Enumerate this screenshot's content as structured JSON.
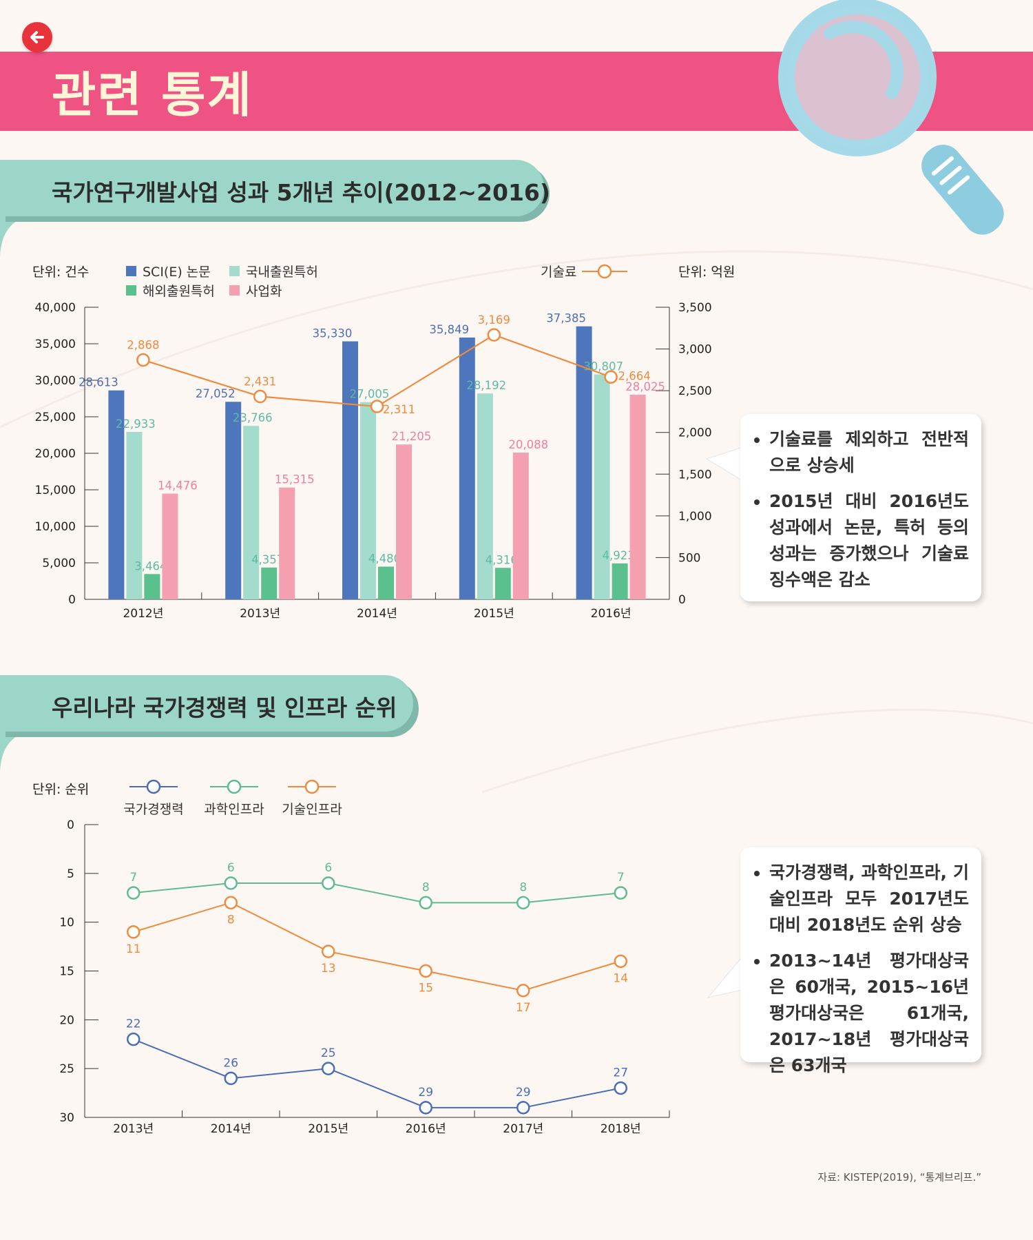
{
  "header": {
    "title": "관련 통계"
  },
  "source": "자료: KISTEP(2019), “통계브리프.”",
  "sections": [
    {
      "title": "국가연구개발사업 성과 5개년 추이(2012~2016)",
      "unit_left": "단위: 건수",
      "unit_right": "단위: 억원",
      "legend_line_label": "기술료",
      "callout": [
        "기술료를 제외하고 전반적으로 상승세",
        "2015년 대비 2016년도 성과에서 논문, 특허 등의 성과는 증가했으나 기술료 징수액은 감소"
      ]
    },
    {
      "title": "우리나라 국가경쟁력 및 인프라 순위",
      "unit_left": "단위: 순위",
      "callout": [
        "국가경쟁력, 과학인프라, 기술인프라 모두 2017년도 대비 2018년도 순위 상승",
        "2013~14년 평가대상국은 60개국, 2015~16년 평가대상국은 61개국, 2017~18년 평가대상국은 63개국"
      ]
    }
  ],
  "chart_data": [
    {
      "type": "bar",
      "categories": [
        "2012년",
        "2013년",
        "2014년",
        "2015년",
        "2016년"
      ],
      "series": [
        {
          "name": "SCI(E) 논문",
          "values": [
            28613,
            27052,
            35330,
            35849,
            37385
          ],
          "color": "#4e76bd",
          "label_color": "#4e6fb5"
        },
        {
          "name": "국내출원특허",
          "values": [
            22933,
            23766,
            27005,
            28192,
            30807
          ],
          "color": "#a3dbcc",
          "label_color": "#5dbba3"
        },
        {
          "name": "해외출원특허",
          "values": [
            3464,
            4357,
            4480,
            4316,
            4923
          ],
          "color": "#5ac18e",
          "label_color": "#5dbba3"
        },
        {
          "name": "사업화",
          "values": [
            14476,
            15315,
            21205,
            20088,
            28025
          ],
          "color": "#f5a0b1",
          "label_color": "#ef7f9c"
        }
      ],
      "line_series": {
        "name": "기술료",
        "axis": "right",
        "values": [
          2868,
          2431,
          2311,
          3169,
          2664
        ],
        "color": "#f08a3c"
      },
      "ylim": [
        0,
        40000
      ],
      "yticks": [
        "0",
        "5,000",
        "10,000",
        "15,000",
        "20,000",
        "25,000",
        "30,000",
        "35,000",
        "40,000"
      ],
      "y2lim": [
        0,
        3500
      ],
      "y2ticks": [
        "0",
        "500",
        "1,000",
        "1,500",
        "2,000",
        "2,500",
        "3,000",
        "3,500"
      ],
      "bar_labels": [
        [
          "28,613",
          "27,052",
          "35,330",
          "35,849",
          "37,385"
        ],
        [
          "22,933",
          "23,766",
          "27,005",
          "28,192",
          "30,807"
        ],
        [
          "3,464",
          "4,357",
          "4,480",
          "4,316",
          "4,923"
        ],
        [
          "14,476",
          "15,315",
          "21,205",
          "20,088",
          "28,025"
        ]
      ],
      "line_labels": [
        "2,868",
        "2,431",
        "2,311",
        "3,169",
        "2,664"
      ]
    },
    {
      "type": "line",
      "categories": [
        "2013년",
        "2014년",
        "2015년",
        "2016년",
        "2017년",
        "2018년"
      ],
      "series": [
        {
          "name": "국가경쟁력",
          "values": [
            22,
            26,
            25,
            29,
            29,
            27
          ],
          "color": "#4a6cb8"
        },
        {
          "name": "과학인프라",
          "values": [
            7,
            6,
            6,
            8,
            8,
            7
          ],
          "color": "#5dbb8f"
        },
        {
          "name": "기술인프라",
          "values": [
            11,
            8,
            13,
            15,
            17,
            14
          ],
          "color": "#f08a3c"
        }
      ],
      "ylim": [
        0,
        30
      ],
      "y_inverted": true,
      "yticks": [
        "0",
        "5",
        "10",
        "15",
        "20",
        "25",
        "30"
      ]
    }
  ]
}
